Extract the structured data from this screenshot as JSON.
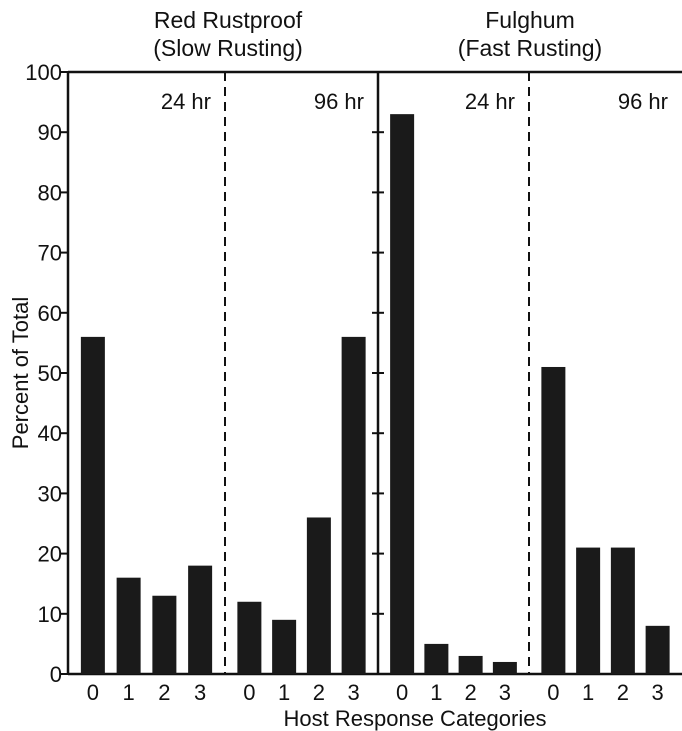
{
  "chart_data": {
    "type": "bar",
    "ylabel": "Percent of Total",
    "xlabel": "Host Response Categories",
    "ylim": [
      0,
      100
    ],
    "yticks": [
      "0",
      "10",
      "20",
      "30",
      "40",
      "50",
      "60",
      "70",
      "80",
      "90",
      "100"
    ],
    "groups": [
      {
        "title_line1": "Red Rustproof",
        "title_line2": "(Slow Rusting)",
        "panels": [
          {
            "label": "24 hr",
            "categories": [
              "0",
              "1",
              "2",
              "3"
            ],
            "values": [
              56,
              16,
              13,
              18
            ]
          },
          {
            "label": "96 hr",
            "categories": [
              "0",
              "1",
              "2",
              "3"
            ],
            "values": [
              12,
              9,
              26,
              56
            ]
          }
        ]
      },
      {
        "title_line1": "Fulghum",
        "title_line2": "(Fast Rusting)",
        "panels": [
          {
            "label": "24 hr",
            "categories": [
              "0",
              "1",
              "2",
              "3"
            ],
            "values": [
              93,
              5,
              3,
              2
            ]
          },
          {
            "label": "96 hr",
            "categories": [
              "0",
              "1",
              "2",
              "3"
            ],
            "values": [
              51,
              21,
              21,
              8
            ]
          }
        ]
      }
    ],
    "bar_color": "#1a1a1a",
    "grid": false,
    "panel_separator": "dashed"
  }
}
